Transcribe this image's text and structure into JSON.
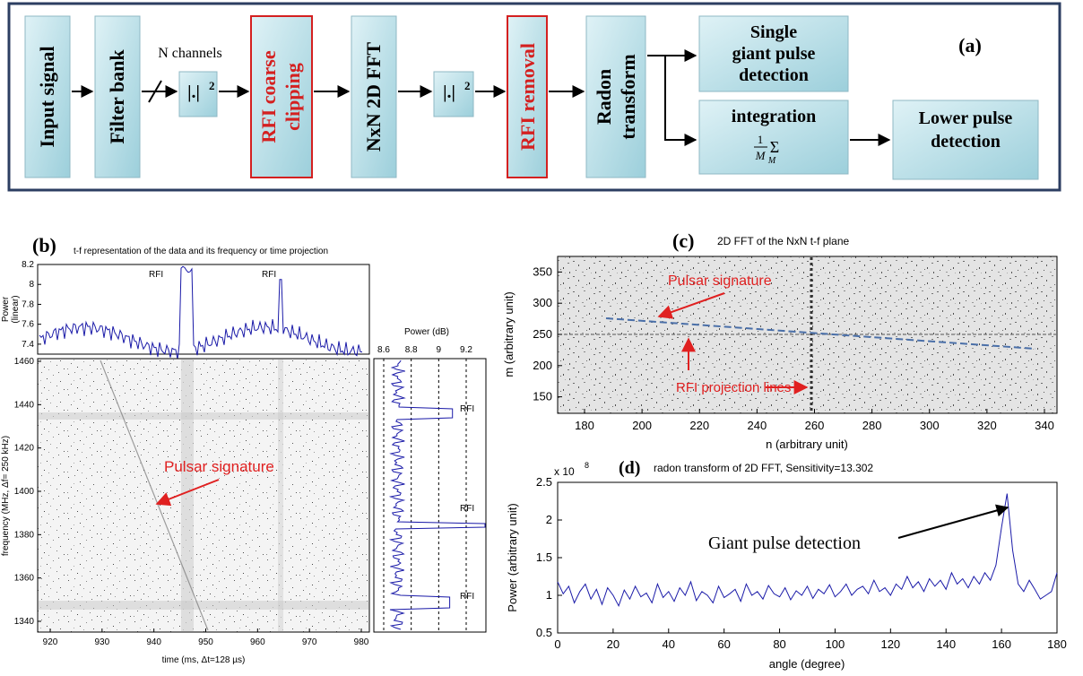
{
  "panel_a": {
    "label": "(a)",
    "boxes": {
      "input": "Input signal",
      "filter": "Filter bank",
      "abs1": "|.|",
      "abs1_sup": "2",
      "rfi_clip_1": "RFI coarse",
      "rfi_clip_2": "clipping",
      "fft": "NxN 2D FFT",
      "abs2": "|.|",
      "abs2_sup": "2",
      "rfi_removal": "RFI removal",
      "radon_1": "Radon",
      "radon_2": "transform",
      "single_1": "Single",
      "single_2": "giant pulse",
      "single_3": "detection",
      "integration": "integration",
      "frac_num": "1",
      "frac_den": "M",
      "sum_sym": "Σ",
      "sum_sub": "M",
      "lower_1": "Lower pulse",
      "lower_2": "detection"
    },
    "channels_label": "N channels",
    "colors": {
      "box_fill": "#bfe3ea",
      "rfi_border": "#d42020",
      "frame": "#2c3e62"
    }
  },
  "panel_b": {
    "label": "(b)",
    "title": "t-f representation of the data and its frequency or time projection",
    "top_ylabel_1": "Power",
    "top_ylabel_2": "(linear)",
    "top_yticks": [
      "8.2",
      "8",
      "7.8",
      "7.6",
      "7.4"
    ],
    "rfi_top": [
      "RFI",
      "RFI"
    ],
    "main_yticks": [
      "1460",
      "1440",
      "1420",
      "1400",
      "1380",
      "1360",
      "1340"
    ],
    "main_xticks": [
      "920",
      "930",
      "940",
      "950",
      "960",
      "970",
      "980"
    ],
    "main_xlabel": "time (ms, Δt=128 µs)",
    "main_ylabel": "frequency (MHz, Δf= 250 kHz)",
    "annotation": "Pulsar signature",
    "right_xlabel": "Power (dB)",
    "right_xticks": [
      "8.6",
      "8.8",
      "9",
      "9.2"
    ],
    "rfi_right": [
      "RFI",
      "RFI",
      "RFI"
    ]
  },
  "panel_c": {
    "label": "(c)",
    "title": "2D FFT of the NxN t-f plane",
    "xlabel": "n (arbitrary unit)",
    "ylabel": "m (arbitrary unit)",
    "xticks": [
      "180",
      "200",
      "220",
      "240",
      "260",
      "280",
      "300",
      "320",
      "340"
    ],
    "yticks": [
      "350",
      "300",
      "250",
      "200",
      "150"
    ],
    "annotation_pulsar": "Pulsar signature",
    "annotation_rfi": "RFI projection lines"
  },
  "chart_data": {
    "type": "line",
    "title": "radon transform of 2D FFT, Sensitivity=13.302",
    "xlabel": "angle (degree)",
    "ylabel": "Power (arbitrary unit)",
    "exponent_label": "x 10",
    "exponent_sup": "8",
    "xlim": [
      0,
      180
    ],
    "ylim": [
      0.5,
      2.5
    ],
    "xticks": [
      "0",
      "20",
      "40",
      "60",
      "80",
      "100",
      "120",
      "140",
      "160",
      "180"
    ],
    "yticks": [
      "2.5",
      "2",
      "1.5",
      "1",
      "0.5"
    ],
    "annotation": "Giant pulse detection",
    "panel_label": "(d)",
    "series": [
      {
        "color": "#1a1aa8",
        "x": [
          0,
          2,
          4,
          6,
          8,
          10,
          12,
          14,
          16,
          18,
          20,
          22,
          24,
          26,
          28,
          30,
          32,
          34,
          36,
          38,
          40,
          42,
          44,
          46,
          48,
          50,
          52,
          54,
          56,
          58,
          60,
          62,
          64,
          66,
          68,
          70,
          72,
          74,
          76,
          78,
          80,
          82,
          84,
          86,
          88,
          90,
          92,
          94,
          96,
          98,
          100,
          102,
          104,
          106,
          108,
          110,
          112,
          114,
          116,
          118,
          120,
          122,
          124,
          126,
          128,
          130,
          132,
          134,
          136,
          138,
          140,
          142,
          144,
          146,
          148,
          150,
          152,
          154,
          156,
          158,
          160,
          162,
          164,
          166,
          168,
          170,
          172,
          174,
          176,
          178,
          180
        ],
        "y": [
          1.18,
          1.02,
          1.12,
          0.9,
          1.05,
          1.15,
          0.95,
          1.08,
          0.88,
          1.1,
          1.0,
          0.86,
          1.07,
          0.95,
          1.12,
          0.98,
          1.03,
          0.9,
          1.15,
          0.97,
          1.05,
          0.92,
          1.1,
          1.0,
          1.18,
          0.93,
          1.05,
          1.0,
          0.9,
          1.12,
          0.97,
          1.02,
          1.08,
          0.92,
          1.15,
          1.0,
          1.05,
          0.95,
          1.13,
          1.02,
          0.98,
          1.1,
          0.94,
          1.06,
          1.0,
          1.12,
          0.96,
          1.08,
          1.02,
          1.14,
          0.98,
          1.05,
          1.15,
          1.0,
          1.08,
          1.12,
          1.02,
          1.2,
          1.05,
          1.1,
          1.0,
          1.15,
          1.08,
          1.25,
          1.1,
          1.18,
          1.05,
          1.22,
          1.12,
          1.2,
          1.08,
          1.3,
          1.15,
          1.22,
          1.1,
          1.25,
          1.15,
          1.3,
          1.2,
          1.4,
          1.9,
          2.35,
          1.6,
          1.15,
          1.05,
          1.2,
          1.08,
          0.95,
          1.0,
          1.05,
          1.3
        ]
      }
    ]
  }
}
